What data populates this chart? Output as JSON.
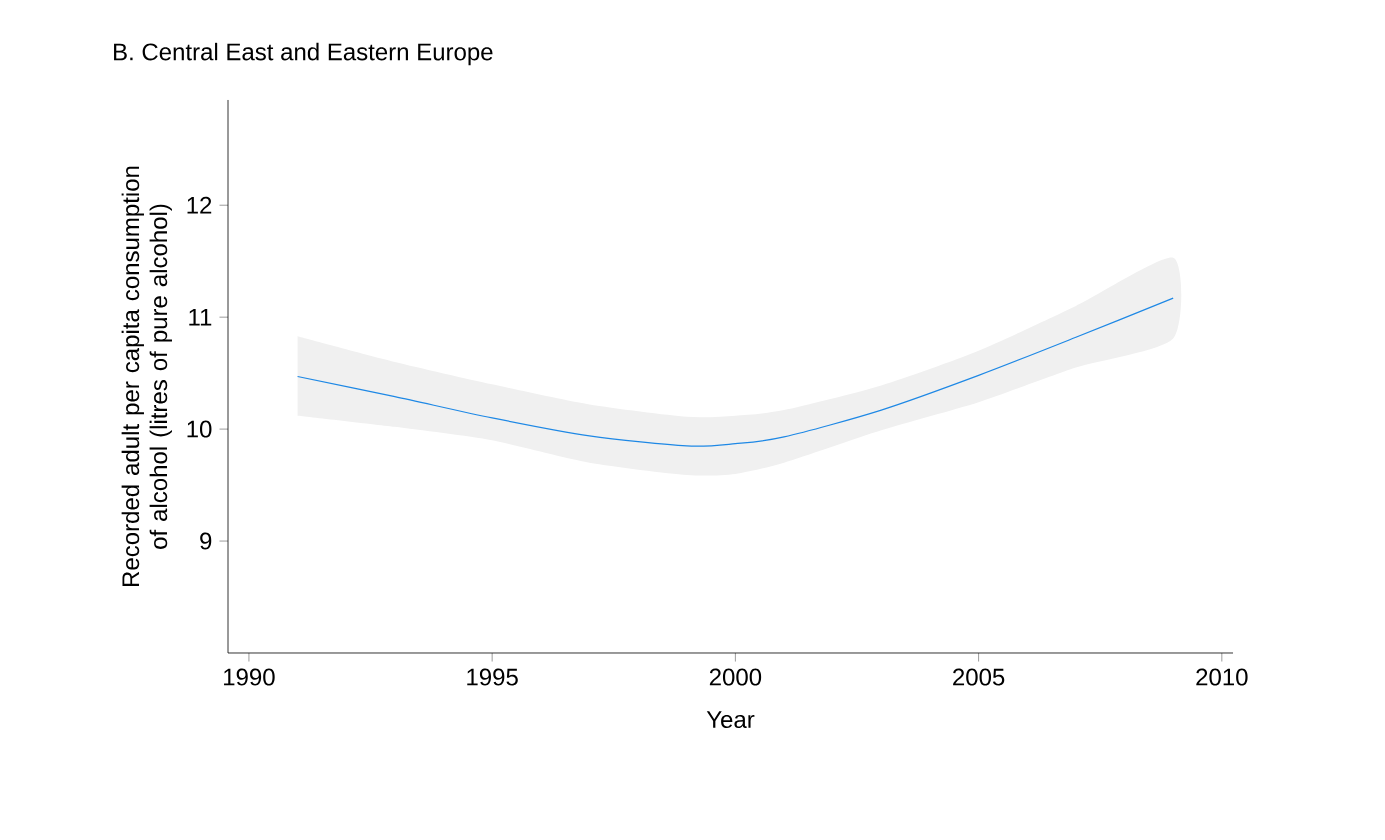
{
  "chart_data": {
    "type": "line",
    "title": "B. Central East and Eastern Europe",
    "xlabel": "Year",
    "ylabel": "Recorded adult per capita consumption of alcohol (litres of pure alcohol)",
    "xlim": [
      1989.57,
      2010.23
    ],
    "ylim": [
      8.0,
      12.94
    ],
    "xticks": [
      1990,
      1995,
      2000,
      2005,
      2010
    ],
    "yticks": [
      9,
      10,
      11,
      12
    ],
    "grid": false,
    "series": [
      {
        "color": "#1e88e5",
        "x": [
          1991,
          1993,
          1995,
          1997,
          1999,
          2000,
          2001,
          2003,
          2005,
          2007,
          2009
        ],
        "values": [
          10.47,
          10.29,
          10.1,
          9.94,
          9.85,
          9.87,
          9.93,
          10.17,
          10.48,
          10.82,
          11.17
        ],
        "lower": [
          10.12,
          10.02,
          9.9,
          9.7,
          9.59,
          9.6,
          9.7,
          9.99,
          10.24,
          10.55,
          10.81
        ],
        "upper": [
          10.83,
          10.6,
          10.4,
          10.22,
          10.11,
          10.12,
          10.17,
          10.39,
          10.7,
          11.1,
          11.53
        ]
      }
    ]
  }
}
